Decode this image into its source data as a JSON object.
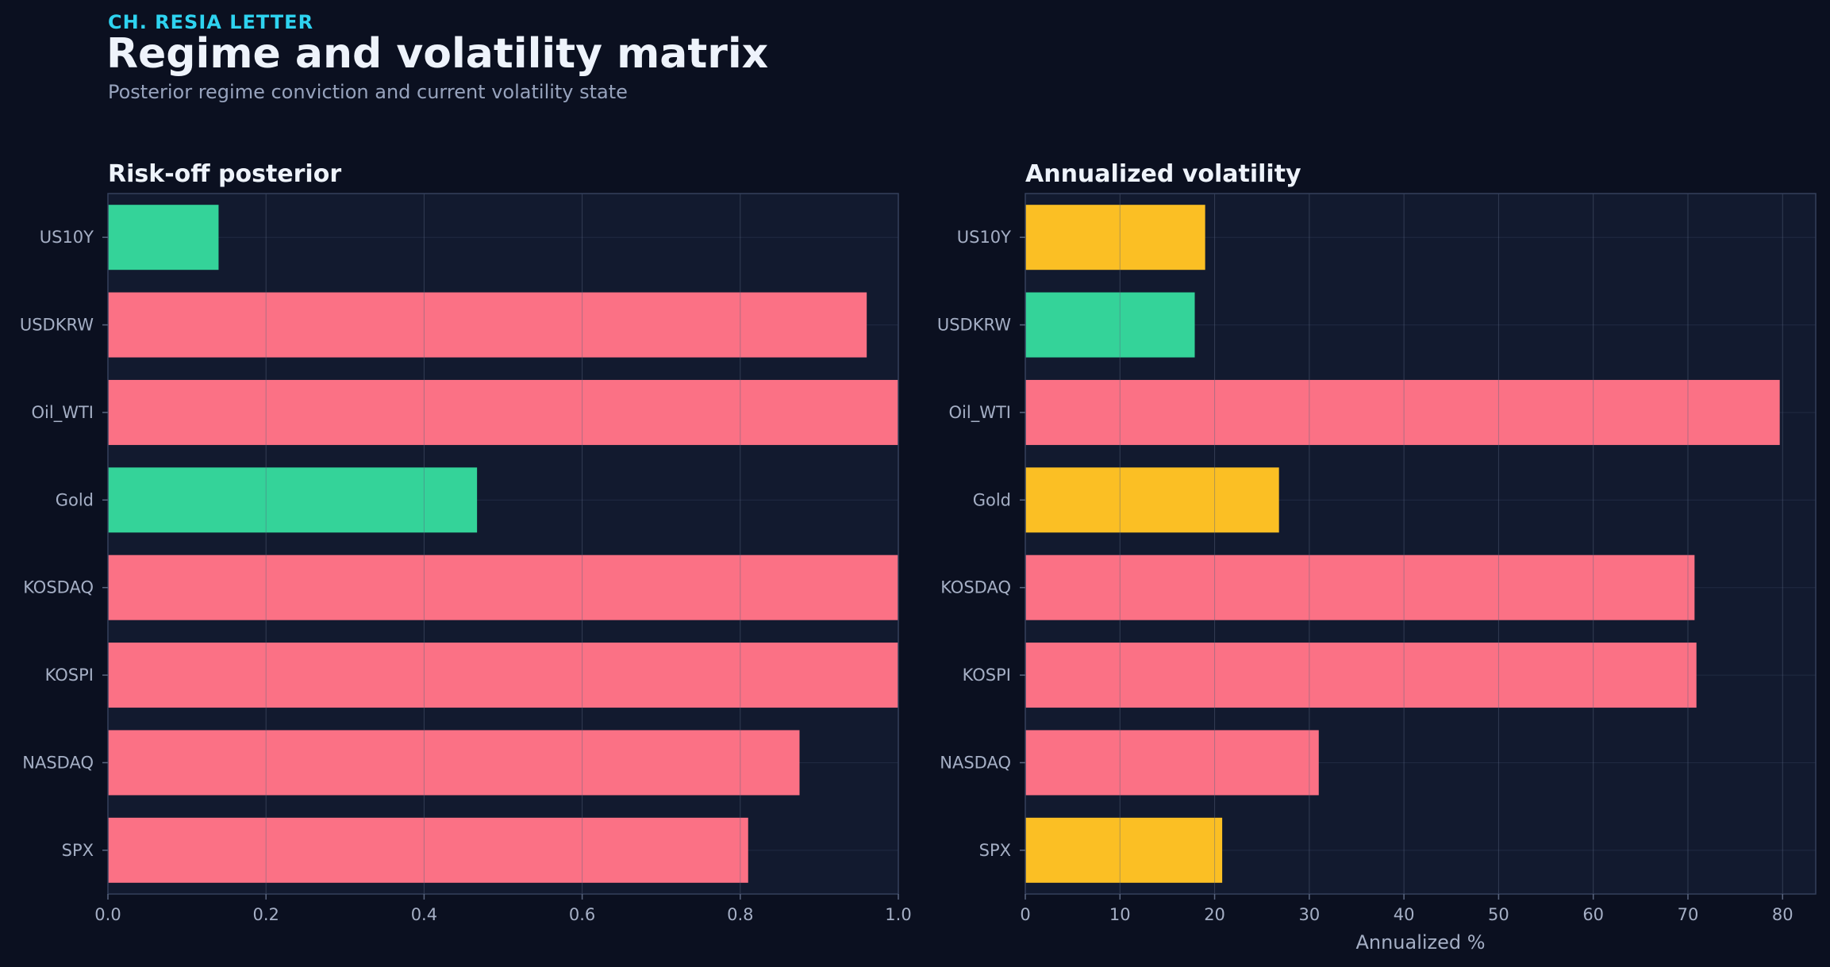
{
  "header": {
    "kicker": "CH. RESIA LETTER",
    "title": "Regime and volatility matrix",
    "subtitle": "Posterior regime conviction and current volatility state"
  },
  "colors": {
    "background": "#0b1020",
    "panel": "#121a2f",
    "green": "#34d399",
    "red": "#fb7185",
    "yellow": "#fbbf24"
  },
  "chart_data": [
    {
      "type": "bar",
      "orientation": "horizontal",
      "title": "Risk-off posterior",
      "xlabel": "",
      "ylabel": "",
      "xlim": [
        0,
        1.0
      ],
      "xticks": [
        "0.0",
        "0.2",
        "0.4",
        "0.6",
        "0.8",
        "1.0"
      ],
      "grid": true,
      "categories": [
        "US10Y",
        "USDKRW",
        "Oil_WTI",
        "Gold",
        "KOSDAQ",
        "KOSPI",
        "NASDAQ",
        "SPX"
      ],
      "values": [
        0.14,
        0.96,
        1.0,
        0.467,
        1.0,
        1.0,
        0.875,
        0.81
      ],
      "bar_colors": [
        "green",
        "red",
        "red",
        "green",
        "red",
        "red",
        "red",
        "red"
      ]
    },
    {
      "type": "bar",
      "orientation": "horizontal",
      "title": "Annualized volatility",
      "xlabel": "Annualized %",
      "ylabel": "",
      "xlim": [
        0,
        83.5
      ],
      "xticks": [
        "0",
        "10",
        "20",
        "30",
        "40",
        "50",
        "60",
        "70",
        "80"
      ],
      "grid": true,
      "categories": [
        "US10Y",
        "USDKRW",
        "Oil_WTI",
        "Gold",
        "KOSDAQ",
        "KOSPI",
        "NASDAQ",
        "SPX"
      ],
      "values": [
        19.0,
        17.9,
        79.7,
        26.8,
        70.7,
        70.9,
        31.0,
        20.8
      ],
      "bar_colors": [
        "yellow",
        "green",
        "red",
        "yellow",
        "red",
        "red",
        "red",
        "yellow"
      ]
    }
  ]
}
